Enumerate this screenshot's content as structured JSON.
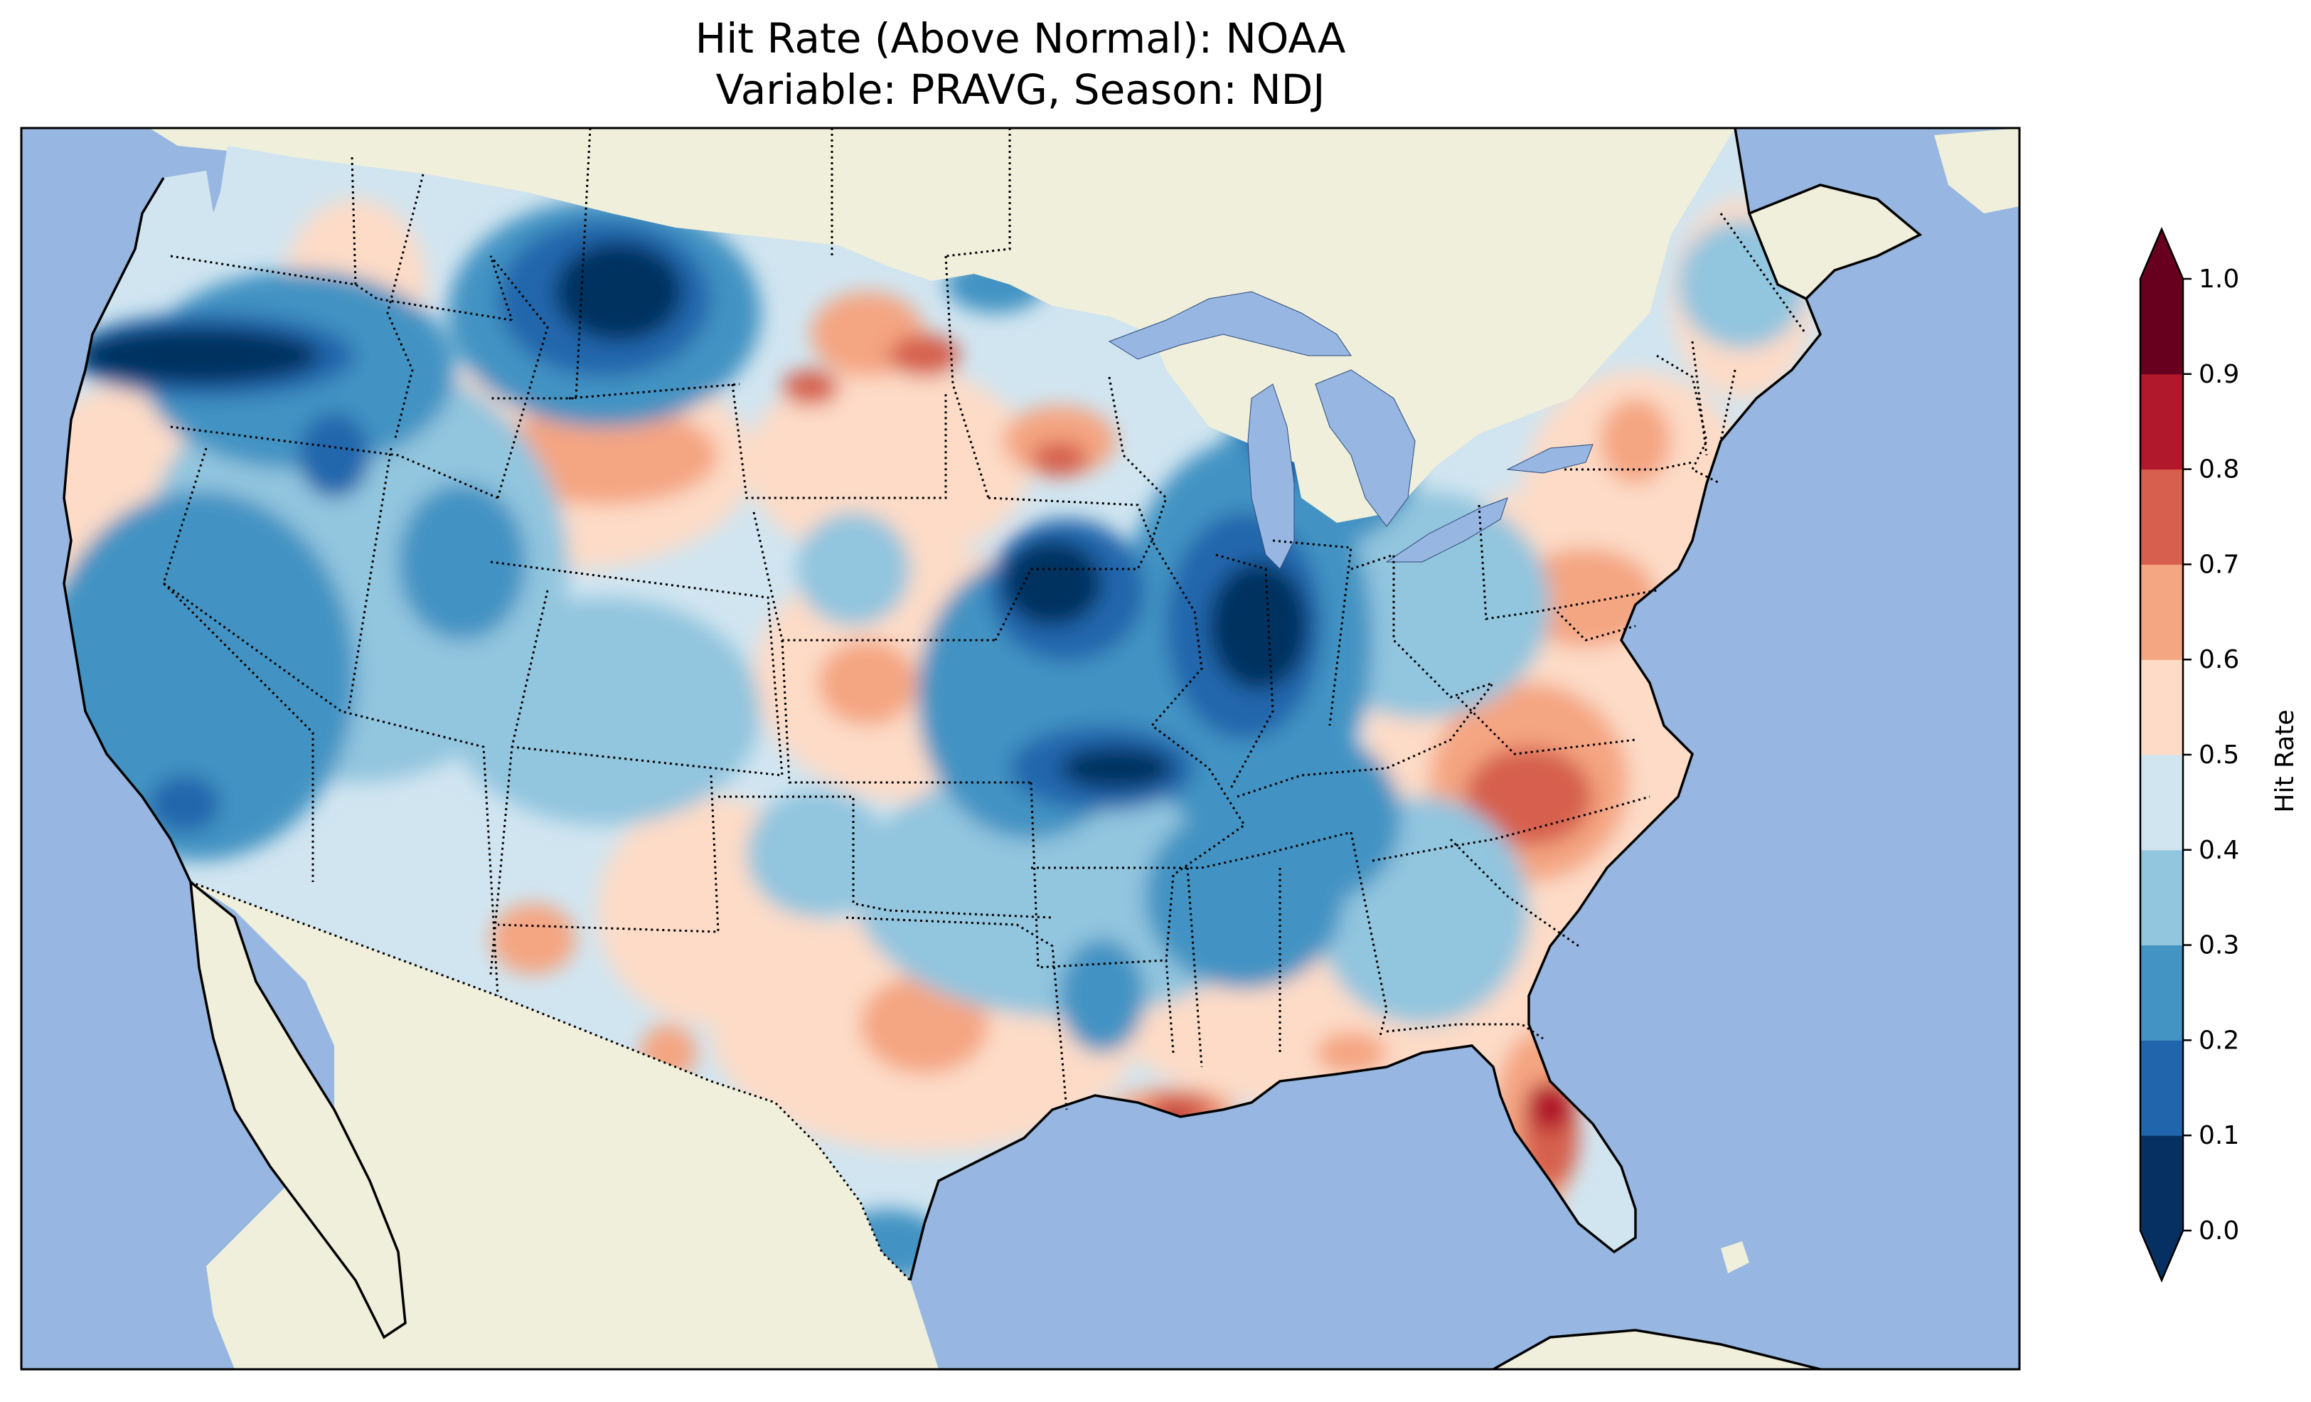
{
  "title": {
    "line1": "Hit Rate (Above Normal): NOAA",
    "line2": "Variable: PRAVG, Season: NDJ"
  },
  "colors": {
    "ocean": "#97b6e1",
    "land": "#efefdb",
    "scale": [
      "#053061",
      "#2166ac",
      "#4393c3",
      "#92c5de",
      "#d1e5f0",
      "#fddbc7",
      "#f4a582",
      "#d6604d",
      "#b2182b",
      "#67001f"
    ],
    "under": "#053061",
    "over": "#67001f"
  },
  "colorbar": {
    "label": "Hit Rate",
    "ticks": [
      "0.0",
      "0.1",
      "0.2",
      "0.3",
      "0.4",
      "0.5",
      "0.6",
      "0.7",
      "0.8",
      "0.9",
      "1.0"
    ],
    "range": [
      0,
      1
    ],
    "extend": "both"
  }
}
